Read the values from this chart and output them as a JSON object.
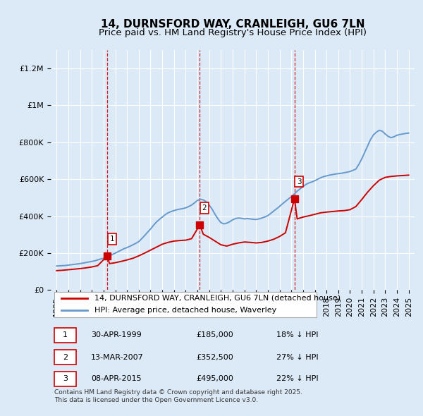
{
  "title": "14, DURNSFORD WAY, CRANLEIGH, GU6 7LN",
  "subtitle": "Price paid vs. HM Land Registry's House Price Index (HPI)",
  "background_color": "#dce9f7",
  "plot_bg_color": "#dce9f7",
  "ylabel_ticks": [
    "£0",
    "£200K",
    "£400K",
    "£600K",
    "£800K",
    "£1M",
    "£1.2M"
  ],
  "ytick_values": [
    0,
    200000,
    400000,
    600000,
    800000,
    1000000,
    1200000
  ],
  "ylim": [
    0,
    1300000
  ],
  "xlim_start": 1994.5,
  "xlim_end": 2025.5,
  "xticks": [
    1995,
    1996,
    1997,
    1998,
    1999,
    2000,
    2001,
    2002,
    2003,
    2004,
    2005,
    2006,
    2007,
    2008,
    2009,
    2010,
    2011,
    2012,
    2013,
    2014,
    2015,
    2016,
    2017,
    2018,
    2019,
    2020,
    2021,
    2022,
    2023,
    2024,
    2025
  ],
  "sale_dates": [
    1999.33,
    2007.2,
    2015.27
  ],
  "sale_prices": [
    185000,
    352500,
    495000
  ],
  "sale_labels": [
    "1",
    "2",
    "3"
  ],
  "hpi_x": [
    1995.0,
    1995.25,
    1995.5,
    1995.75,
    1996.0,
    1996.25,
    1996.5,
    1996.75,
    1997.0,
    1997.25,
    1997.5,
    1997.75,
    1998.0,
    1998.25,
    1998.5,
    1998.75,
    1999.0,
    1999.25,
    1999.5,
    1999.75,
    2000.0,
    2000.25,
    2000.5,
    2000.75,
    2001.0,
    2001.25,
    2001.5,
    2001.75,
    2002.0,
    2002.25,
    2002.5,
    2002.75,
    2003.0,
    2003.25,
    2003.5,
    2003.75,
    2004.0,
    2004.25,
    2004.5,
    2004.75,
    2005.0,
    2005.25,
    2005.5,
    2005.75,
    2006.0,
    2006.25,
    2006.5,
    2006.75,
    2007.0,
    2007.25,
    2007.5,
    2007.75,
    2008.0,
    2008.25,
    2008.5,
    2008.75,
    2009.0,
    2009.25,
    2009.5,
    2009.75,
    2010.0,
    2010.25,
    2010.5,
    2010.75,
    2011.0,
    2011.25,
    2011.5,
    2011.75,
    2012.0,
    2012.25,
    2012.5,
    2012.75,
    2013.0,
    2013.25,
    2013.5,
    2013.75,
    2014.0,
    2014.25,
    2014.5,
    2014.75,
    2015.0,
    2015.25,
    2015.5,
    2015.75,
    2016.0,
    2016.25,
    2016.5,
    2016.75,
    2017.0,
    2017.25,
    2017.5,
    2017.75,
    2018.0,
    2018.25,
    2018.5,
    2018.75,
    2019.0,
    2019.25,
    2019.5,
    2019.75,
    2020.0,
    2020.25,
    2020.5,
    2020.75,
    2021.0,
    2021.25,
    2021.5,
    2021.75,
    2022.0,
    2022.25,
    2022.5,
    2022.75,
    2023.0,
    2023.25,
    2023.5,
    2023.75,
    2024.0,
    2024.25,
    2024.5,
    2024.75,
    2025.0
  ],
  "hpi_y": [
    130000,
    131000,
    132000,
    133000,
    135000,
    137000,
    139000,
    141000,
    143000,
    146000,
    149000,
    152000,
    155000,
    158000,
    163000,
    168000,
    172000,
    178000,
    185000,
    193000,
    200000,
    208000,
    216000,
    224000,
    230000,
    237000,
    245000,
    253000,
    262000,
    278000,
    295000,
    313000,
    330000,
    350000,
    368000,
    382000,
    395000,
    408000,
    418000,
    425000,
    430000,
    435000,
    438000,
    441000,
    445000,
    452000,
    460000,
    472000,
    485000,
    492000,
    488000,
    478000,
    460000,
    438000,
    410000,
    385000,
    365000,
    358000,
    362000,
    370000,
    380000,
    387000,
    390000,
    388000,
    385000,
    387000,
    385000,
    383000,
    382000,
    385000,
    390000,
    396000,
    403000,
    415000,
    428000,
    440000,
    453000,
    467000,
    480000,
    493000,
    505000,
    520000,
    535000,
    548000,
    560000,
    572000,
    580000,
    585000,
    592000,
    600000,
    608000,
    614000,
    618000,
    622000,
    625000,
    628000,
    630000,
    632000,
    635000,
    638000,
    642000,
    648000,
    655000,
    680000,
    710000,
    745000,
    780000,
    815000,
    840000,
    855000,
    865000,
    860000,
    845000,
    832000,
    825000,
    830000,
    838000,
    842000,
    845000,
    848000,
    850000
  ],
  "property_x": [
    1995.0,
    1995.5,
    1996.0,
    1996.5,
    1997.0,
    1997.5,
    1998.0,
    1998.5,
    1999.33,
    1999.5,
    2000.0,
    2000.5,
    2001.0,
    2001.5,
    2002.0,
    2002.5,
    2003.0,
    2003.5,
    2004.0,
    2004.5,
    2005.0,
    2005.5,
    2006.0,
    2006.5,
    2007.2,
    2007.5,
    2008.0,
    2008.5,
    2009.0,
    2009.5,
    2010.0,
    2010.5,
    2011.0,
    2011.5,
    2012.0,
    2012.5,
    2013.0,
    2013.5,
    2014.0,
    2014.5,
    2015.27,
    2015.5,
    2016.0,
    2016.5,
    2017.0,
    2017.5,
    2018.0,
    2018.5,
    2019.0,
    2019.5,
    2020.0,
    2020.5,
    2021.0,
    2021.5,
    2022.0,
    2022.5,
    2023.0,
    2023.5,
    2024.0,
    2024.5,
    2025.0
  ],
  "property_y": [
    105000,
    107000,
    110000,
    113000,
    116000,
    120000,
    125000,
    132000,
    185000,
    143000,
    148000,
    155000,
    163000,
    172000,
    185000,
    200000,
    216000,
    232000,
    248000,
    258000,
    265000,
    268000,
    270000,
    278000,
    352500,
    302000,
    285000,
    265000,
    245000,
    238000,
    248000,
    255000,
    260000,
    258000,
    255000,
    258000,
    265000,
    275000,
    290000,
    310000,
    495000,
    385000,
    395000,
    402000,
    410000,
    418000,
    422000,
    425000,
    428000,
    430000,
    435000,
    452000,
    490000,
    530000,
    565000,
    595000,
    610000,
    615000,
    618000,
    620000,
    622000
  ],
  "sale_line_color": "#cc0000",
  "hpi_line_color": "#6699cc",
  "dashed_line_color": "#cc0000",
  "legend_label_property": "14, DURNSFORD WAY, CRANLEIGH, GU6 7LN (detached house)",
  "legend_label_hpi": "HPI: Average price, detached house, Waverley",
  "table_data": [
    {
      "num": "1",
      "date": "30-APR-1999",
      "price": "£185,000",
      "hpi": "18% ↓ HPI"
    },
    {
      "num": "2",
      "date": "13-MAR-2007",
      "price": "£352,500",
      "hpi": "27% ↓ HPI"
    },
    {
      "num": "3",
      "date": "08-APR-2015",
      "price": "£495,000",
      "hpi": "22% ↓ HPI"
    }
  ],
  "footer_text": "Contains HM Land Registry data © Crown copyright and database right 2025.\nThis data is licensed under the Open Government Licence v3.0.",
  "grid_color": "#ffffff",
  "title_fontsize": 11,
  "subtitle_fontsize": 9.5,
  "tick_fontsize": 8,
  "legend_fontsize": 8,
  "table_fontsize": 8,
  "footer_fontsize": 6.5
}
